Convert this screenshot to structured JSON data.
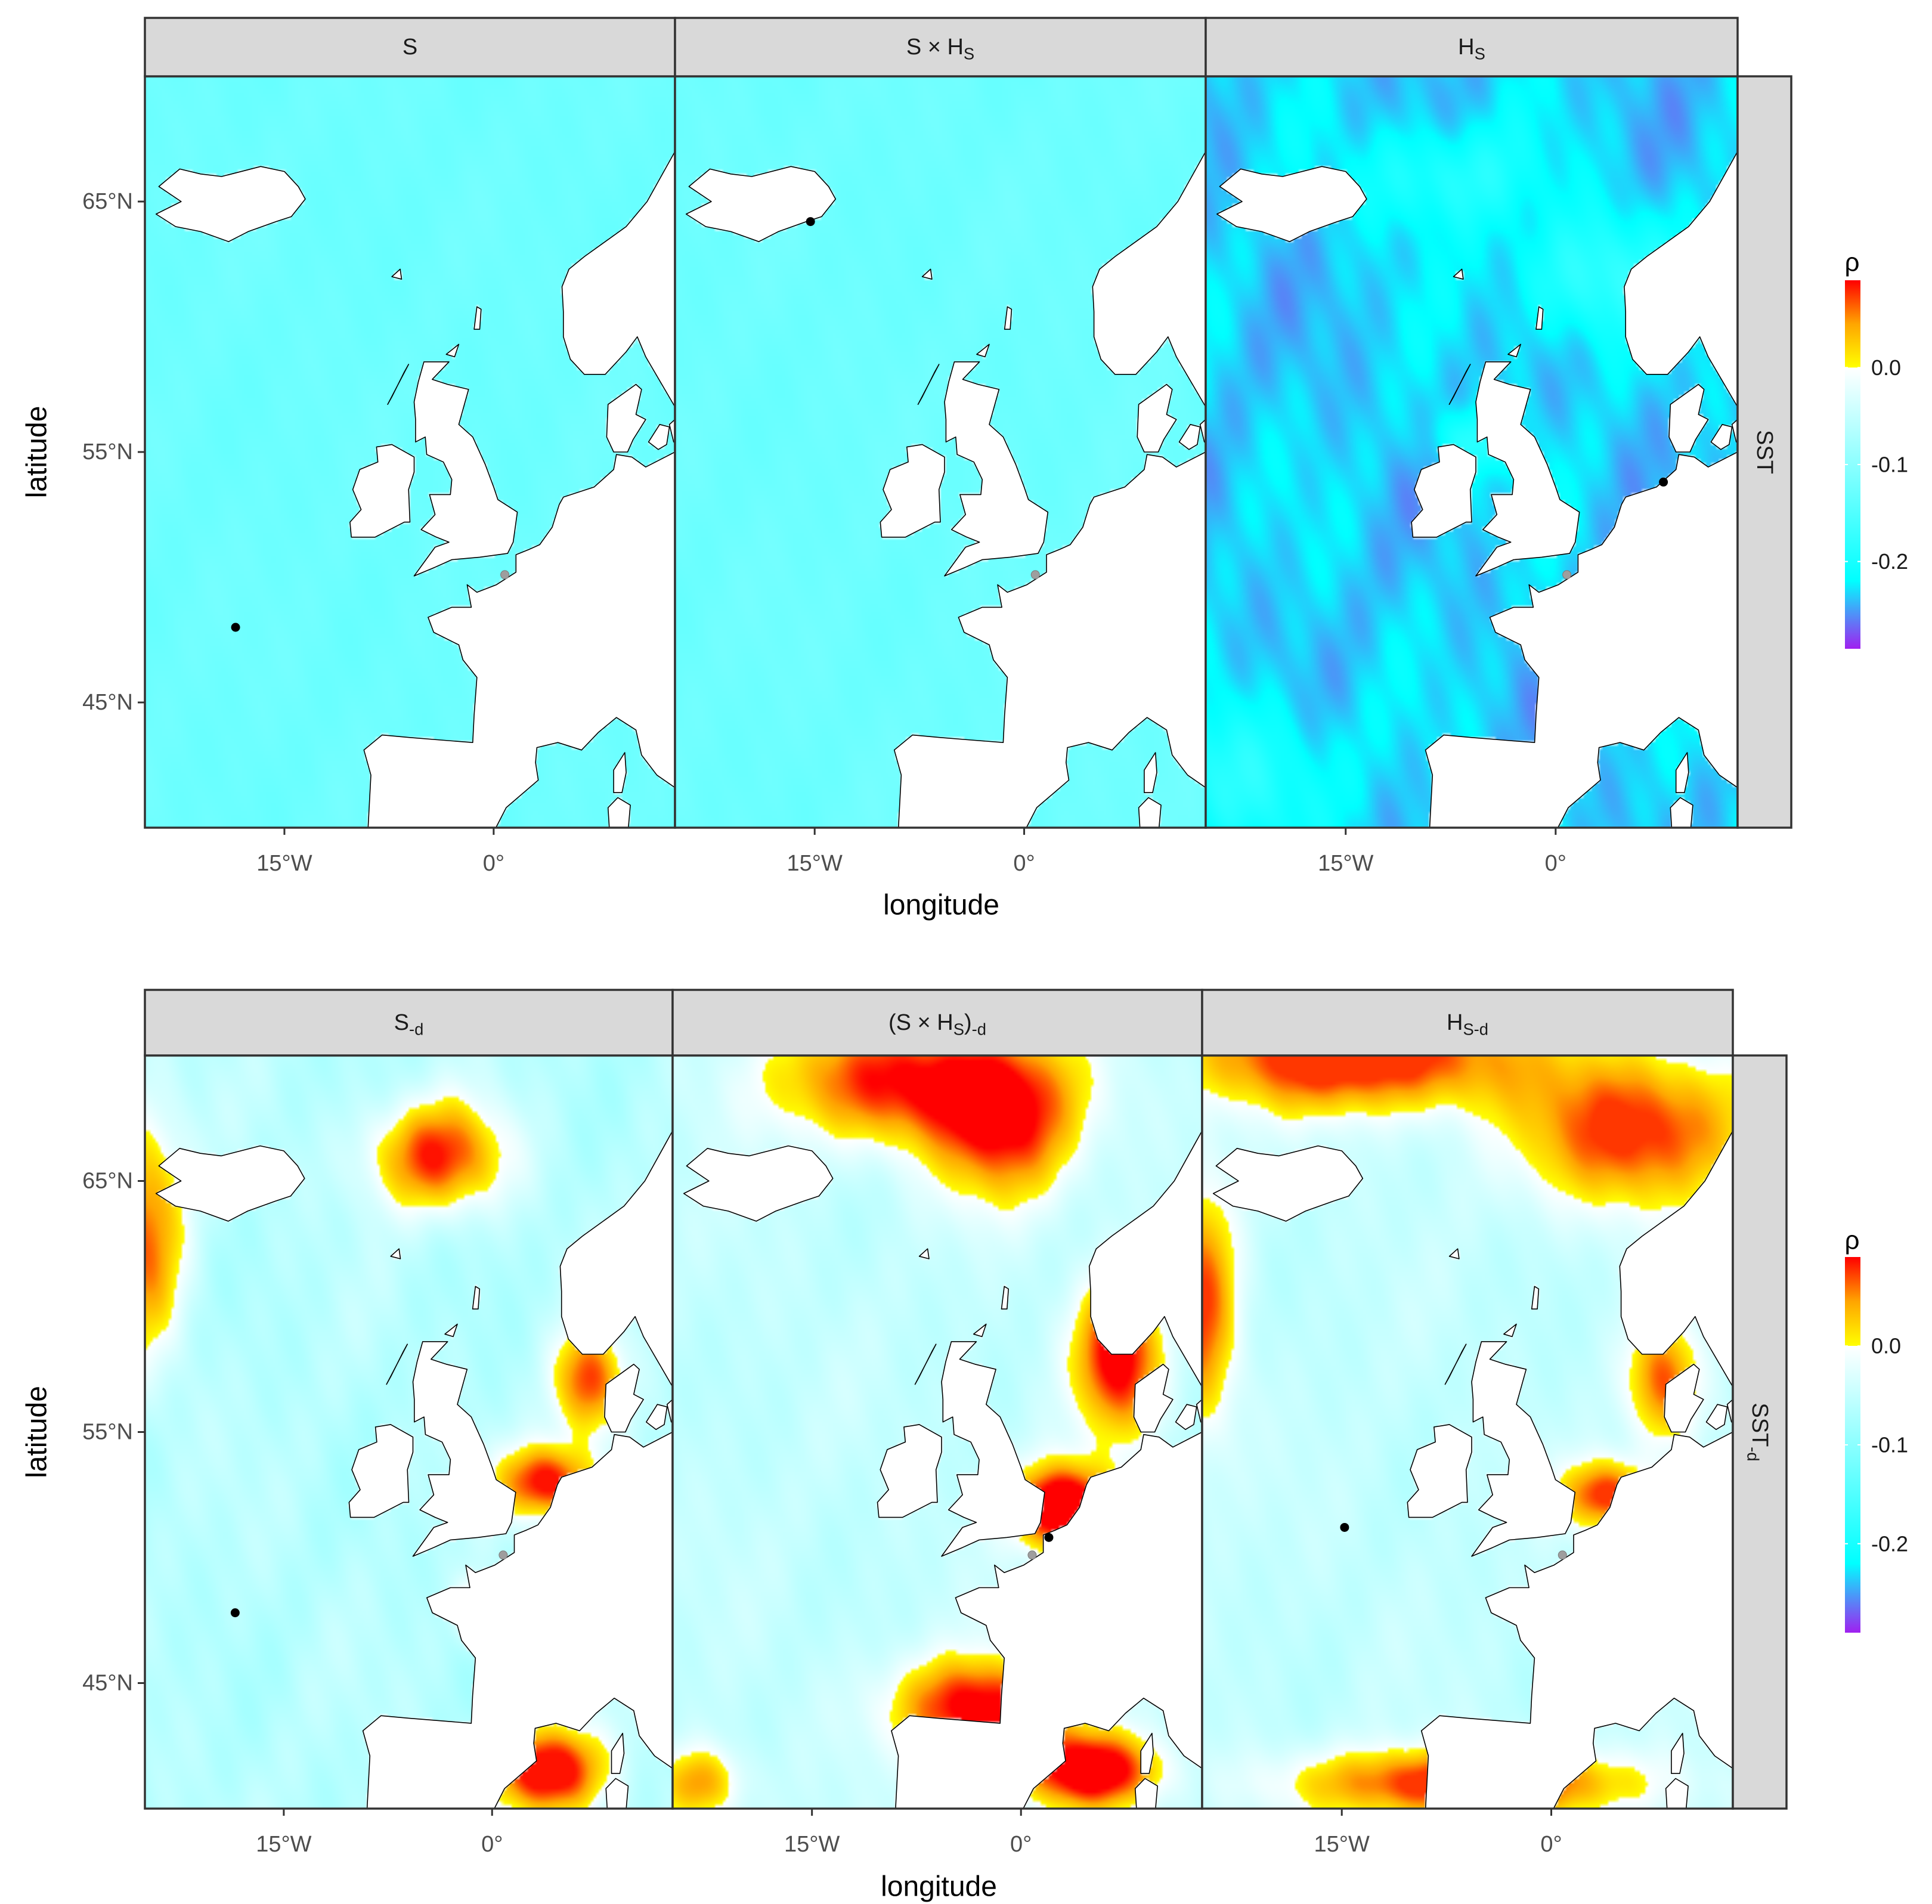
{
  "figure": {
    "rows": [
      {
        "panels": [
          {
            "title": "S",
            "scenario": "light",
            "dot": [
              -18.5,
              48.0
            ],
            "grey_dot": [
              0.8,
              50.1
            ]
          },
          {
            "title": "S × H_S",
            "scenario": "light",
            "dot": [
              -15.3,
              64.2
            ],
            "grey_dot": [
              0.8,
              50.1
            ]
          },
          {
            "title": "H_S",
            "scenario": "hs",
            "dot": [
              7.7,
              53.8
            ],
            "grey_dot": [
              0.8,
              50.1
            ]
          }
        ],
        "strip_right": "SST",
        "xlabel": "longitude",
        "ylabel": "latitude"
      },
      {
        "panels": [
          {
            "title": "S_{-d}",
            "scenario": "sd",
            "dot": [
              -18.5,
              47.8
            ],
            "grey_dot": [
              0.8,
              50.1
            ]
          },
          {
            "title": "(S × H_S)_{-d}",
            "scenario": "shd",
            "dot": [
              2.0,
              50.8
            ],
            "grey_dot": [
              0.8,
              50.1
            ]
          },
          {
            "title": "H_{S-d}",
            "scenario": "hd",
            "dot": [
              -14.8,
              51.2
            ],
            "grey_dot": [
              0.8,
              50.1
            ]
          }
        ],
        "strip_right": "SST_{-d}",
        "xlabel": "longitude",
        "ylabel": "latitude"
      }
    ],
    "x_ticks": [
      {
        "label": "15°W",
        "value": -15
      },
      {
        "label": "0°",
        "value": 0
      }
    ],
    "y_ticks": [
      {
        "label": "65°N",
        "value": 65
      },
      {
        "label": "55°N",
        "value": 55
      },
      {
        "label": "45°N",
        "value": 45
      }
    ],
    "legend": {
      "title": "ρ",
      "labels": [
        {
          "label": "0.0",
          "value": 0.0
        },
        {
          "label": "-0.1",
          "value": -0.1
        },
        {
          "label": "-0.2",
          "value": -0.2
        }
      ],
      "range": [
        -0.29,
        0.09
      ]
    },
    "extent": {
      "lon": [
        -25,
        13
      ],
      "lat": [
        40,
        70
      ]
    },
    "colors": {
      "strip_fill": "#d9d9d9",
      "panel_border": "#333333",
      "land": "#ffffff",
      "coast": "#000000",
      "scale": [
        "#a020f0",
        "#00ffff",
        "#ffffff",
        "#ffff00",
        "#ffa500",
        "#ff0000"
      ]
    }
  },
  "chart_data": [
    {
      "type": "heatmap",
      "title": "S",
      "row": "SST",
      "legend_title": "ρ",
      "value_range": [
        -0.29,
        0.09
      ],
      "typical_value": -0.13
    },
    {
      "type": "heatmap",
      "title": "S × H_S",
      "row": "SST",
      "legend_title": "ρ",
      "value_range": [
        -0.29,
        0.09
      ],
      "typical_value": -0.15
    },
    {
      "type": "heatmap",
      "title": "H_S",
      "row": "SST",
      "legend_title": "ρ",
      "value_range": [
        -0.29,
        0.09
      ],
      "typical_value": -0.23
    },
    {
      "type": "heatmap",
      "title": "S_{-d}",
      "row": "SST_{-d}",
      "legend_title": "ρ",
      "value_range": [
        -0.29,
        0.09
      ],
      "typical_value": -0.06
    },
    {
      "type": "heatmap",
      "title": "(S × H_S)_{-d}",
      "row": "SST_{-d}",
      "legend_title": "ρ",
      "value_range": [
        -0.29,
        0.09
      ],
      "typical_value": -0.04
    },
    {
      "type": "heatmap",
      "title": "H_{S-d}",
      "row": "SST_{-d}",
      "legend_title": "ρ",
      "value_range": [
        -0.29,
        0.09
      ],
      "typical_value": -0.05
    }
  ]
}
